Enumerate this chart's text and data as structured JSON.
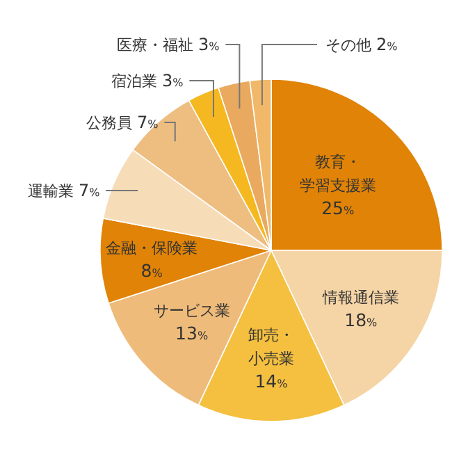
{
  "chart_data": {
    "type": "pie",
    "categories": [
      "教育・学習支援業",
      "情報通信業",
      "卸売・小売業",
      "サービス業",
      "金融・保険業",
      "運輸業",
      "公務員",
      "宿泊業",
      "医療・福祉",
      "その他"
    ],
    "values": [
      25,
      18,
      14,
      13,
      8,
      7,
      7,
      3,
      3,
      2
    ],
    "value_labels": [
      "25%",
      "18%",
      "14%",
      "13%",
      "8%",
      "7%",
      "7%",
      "3%",
      "3%",
      "2%"
    ],
    "colors": [
      "#e08306",
      "#f5d4a6",
      "#f5c040",
      "#eebb7a",
      "#e08306",
      "#f7dcb8",
      "#eebd80",
      "#f5b820",
      "#e9aa60",
      "#f0b868"
    ]
  }
}
